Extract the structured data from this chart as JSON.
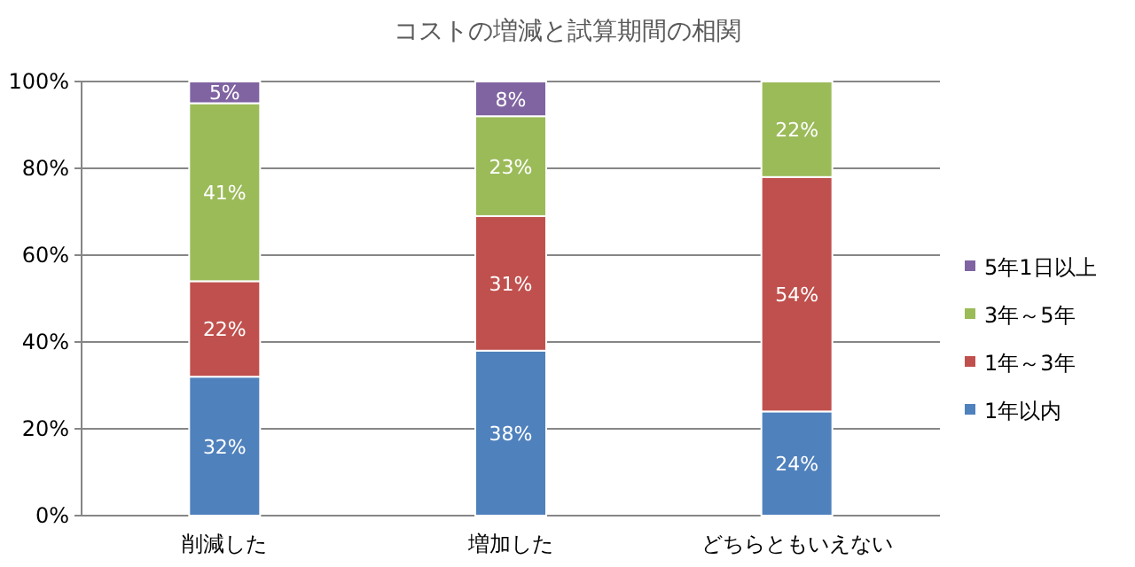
{
  "chart_data": {
    "type": "bar",
    "title": "コストの増減と試算期間の相関",
    "stacked": true,
    "categories": [
      "削減した",
      "増加した",
      "どちらともいえない"
    ],
    "series": [
      {
        "name": "1年以内",
        "color": "#4f81bd",
        "values": [
          32,
          38,
          24
        ],
        "value_labels": [
          "32%",
          "38%",
          "24%"
        ]
      },
      {
        "name": "1年～3年",
        "color": "#c0504d",
        "values": [
          22,
          31,
          54
        ],
        "value_labels": [
          "22%",
          "31%",
          "54%"
        ]
      },
      {
        "name": "3年～5年",
        "color": "#9bbb59",
        "values": [
          41,
          23,
          22
        ],
        "value_labels": [
          "41%",
          "23%",
          "22%"
        ]
      },
      {
        "name": "5年1日以上",
        "color": "#8064a2",
        "values": [
          5,
          8,
          0
        ],
        "value_labels": [
          "5%",
          "8%",
          null
        ]
      }
    ],
    "ylim": [
      0,
      100
    ],
    "yticks": [
      {
        "value": 0,
        "label": "0%"
      },
      {
        "value": 20,
        "label": "20%"
      },
      {
        "value": 40,
        "label": "40%"
      },
      {
        "value": 60,
        "label": "60%"
      },
      {
        "value": 80,
        "label": "80%"
      },
      {
        "value": 100,
        "label": "100%"
      }
    ],
    "grid": "y",
    "legend": "right"
  }
}
